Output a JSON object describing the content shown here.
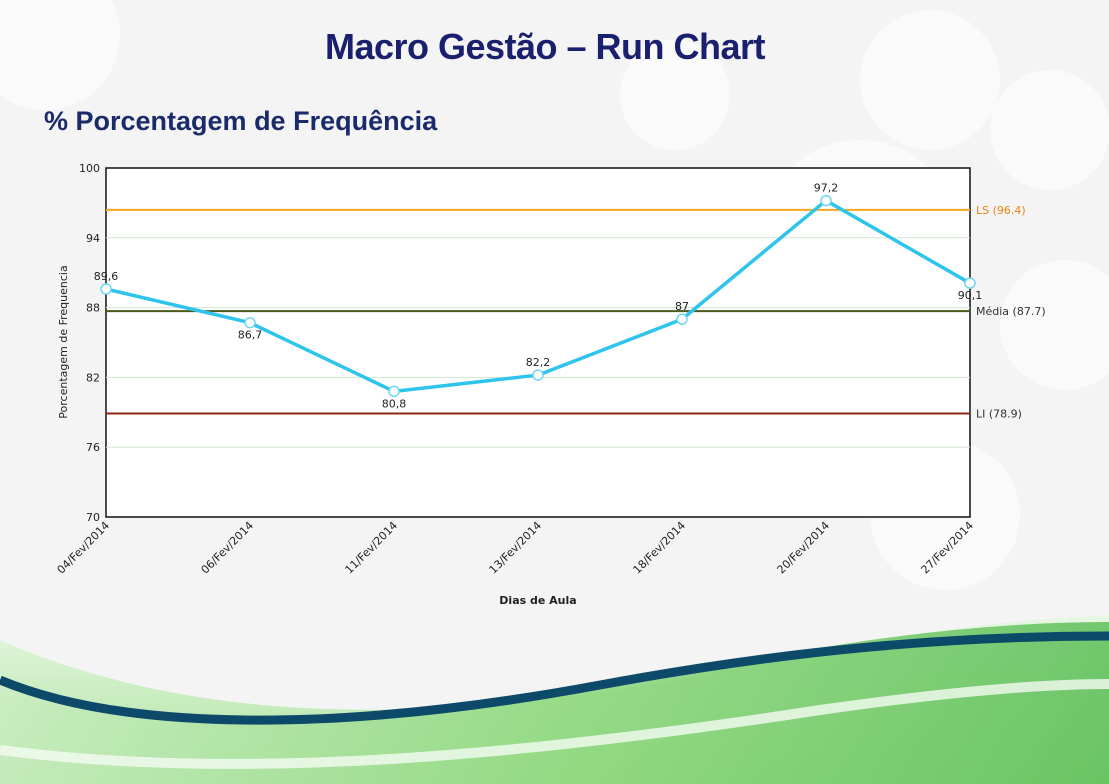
{
  "slide": {
    "title": "Macro Gestão – Run Chart",
    "subtitle": "% Porcentagem de Frequência"
  },
  "colors": {
    "title": "#1a1f6e",
    "series": "#2ec4ec",
    "ls": "#f5a623",
    "media": "#4a5a1a",
    "li": "#8b2a10",
    "wave_dark": "#0d4a6a",
    "wave_green": "#7ccf6a"
  },
  "chart_data": {
    "type": "line",
    "title": "",
    "xlabel": "Dias de Aula",
    "ylabel": "Porcentagem de Frequencia",
    "ylim": [
      70,
      100
    ],
    "yticks": [
      70,
      76,
      82,
      88,
      94,
      100
    ],
    "grid": "horizontal",
    "categories": [
      "04/Fev/2014",
      "06/Fev/2014",
      "11/Fev/2014",
      "13/Fev/2014",
      "18/Fev/2014",
      "20/Fev/2014",
      "27/Fev/2014"
    ],
    "series": [
      {
        "values": [
          89.6,
          86.7,
          80.8,
          82.2,
          87,
          97.2,
          90.1
        ],
        "labels": [
          "89,6",
          "86,7",
          "80,8",
          "82,2",
          "87",
          "97,2",
          "90,1"
        ]
      }
    ],
    "reference_lines": [
      {
        "label": "LS (96.4)",
        "value": 96.4,
        "color": "#f5a623"
      },
      {
        "label": "Média (87.7)",
        "value": 87.7,
        "color": "#4a5a1a"
      },
      {
        "label": "LI (78.9)",
        "value": 78.9,
        "color": "#8b2a10"
      }
    ]
  }
}
